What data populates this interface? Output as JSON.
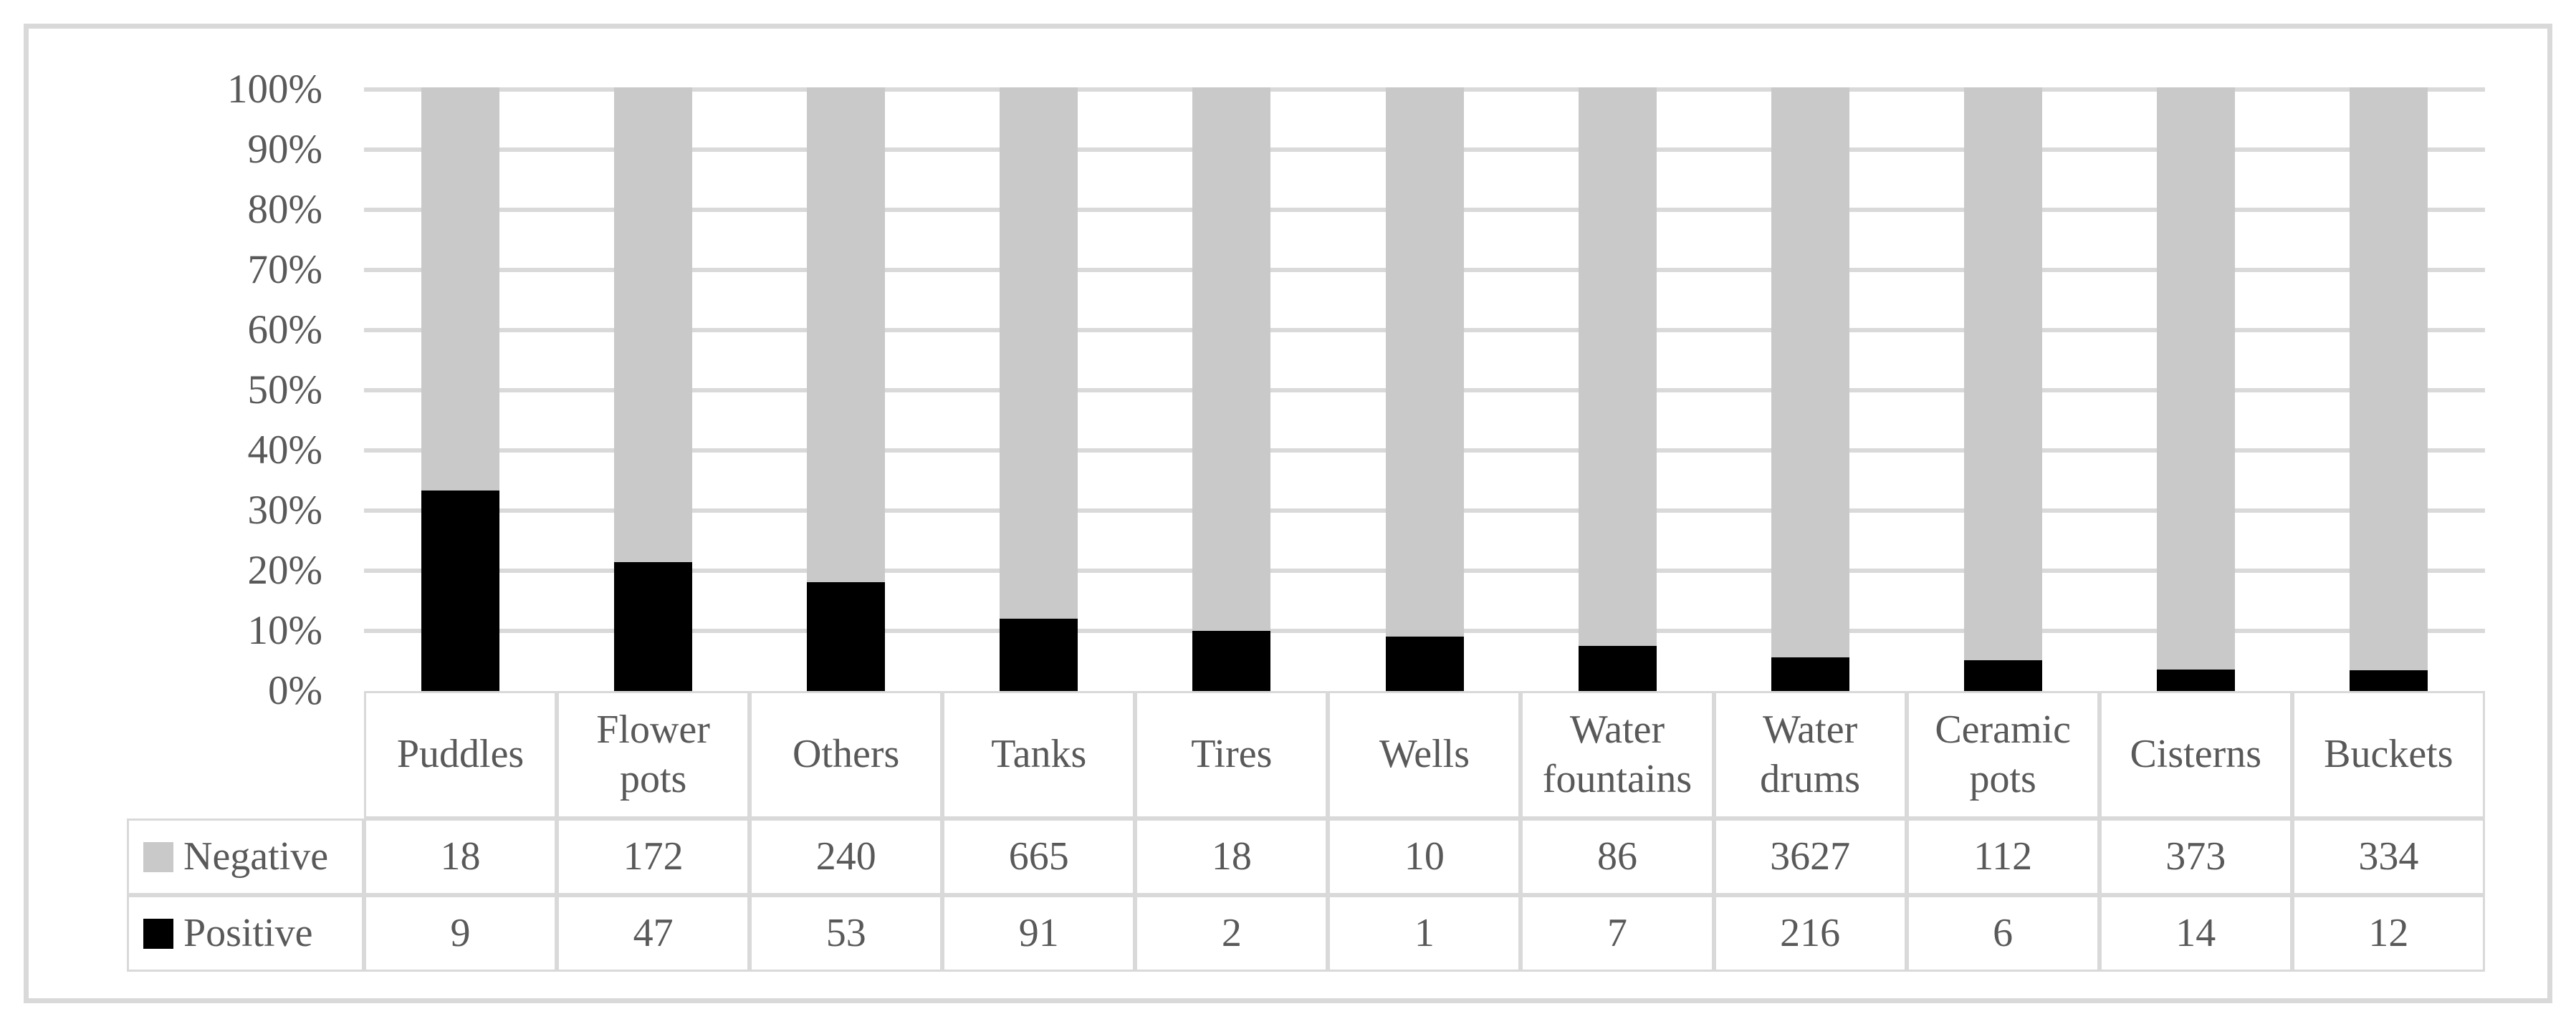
{
  "chart_data": {
    "type": "bar",
    "stacking": "percent",
    "orientation": "vertical",
    "title": "",
    "categories": [
      "Puddles",
      "Flower pots",
      "Others",
      "Tanks",
      "Tires",
      "Wells",
      "Water fountains",
      "Water drums",
      "Ceramic pots",
      "Cisterns",
      "Buckets"
    ],
    "series": [
      {
        "name": "Negative",
        "color": "#c9c9c9",
        "values": [
          18,
          172,
          240,
          665,
          18,
          10,
          86,
          3627,
          112,
          373,
          334
        ]
      },
      {
        "name": "Positive",
        "color": "#000000",
        "values": [
          9,
          47,
          53,
          91,
          2,
          1,
          7,
          216,
          6,
          14,
          12
        ]
      }
    ],
    "y_axis": {
      "ticks": [
        "100%",
        "90%",
        "80%",
        "70%",
        "60%",
        "50%",
        "40%",
        "30%",
        "20%",
        "10%",
        "0%"
      ],
      "min": 0,
      "max": 1,
      "unit": "percent"
    },
    "grid": true,
    "legend_position": "data-table-left",
    "data_table_attached": true
  },
  "colors": {
    "text": "#595959",
    "gridline": "#d9d9d9",
    "table_border": "#d9d9d9",
    "figure_border": "#d9d9d9",
    "background": "#ffffff",
    "negative_series": "#c9c9c9",
    "positive_series": "#000000"
  }
}
